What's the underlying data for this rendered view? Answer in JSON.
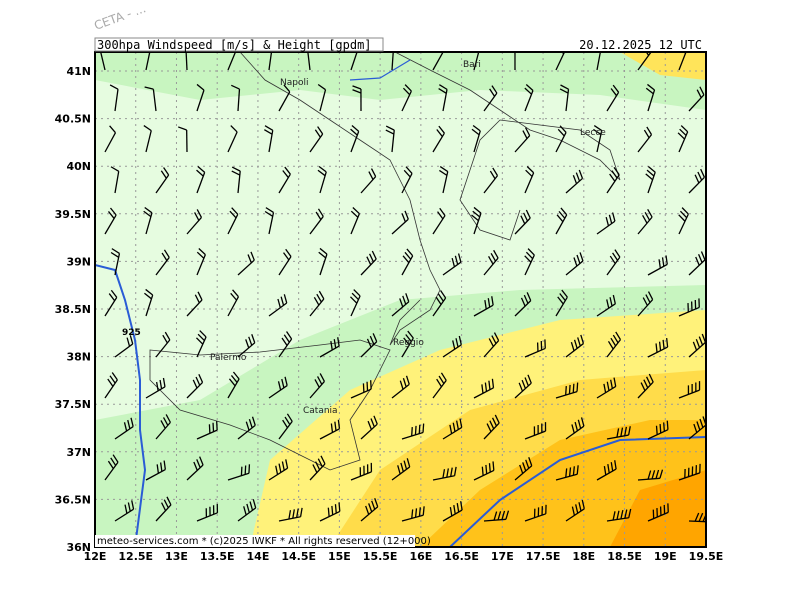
{
  "header": {
    "title": "300hpa_Windspeed_[m/s]_&_Height_[gpdm]",
    "valid_time": "20.12.2025 12 UTC",
    "watermark": "CETA - ..."
  },
  "axes": {
    "lat_labels": [
      "41N",
      "40.5N",
      "40N",
      "39.5N",
      "39N",
      "38.5N",
      "38N",
      "37.5N",
      "37N",
      "36.5N",
      "36N"
    ],
    "lon_labels": [
      "12E",
      "12.5E",
      "13E",
      "13.5E",
      "14E",
      "14.5E",
      "15E",
      "15.5E",
      "16E",
      "16.5E",
      "17E",
      "17.5E",
      "18E",
      "18.5E",
      "19E",
      "19.5E"
    ]
  },
  "places": [
    "Napoli",
    "Bari",
    "Lecce",
    "Palermo",
    "Reggio",
    "Catania"
  ],
  "contour_labels": [
    "925"
  ],
  "footer": "meteo-services.com * (c)2025 IWKF * All rights reserved (12+000)"
}
